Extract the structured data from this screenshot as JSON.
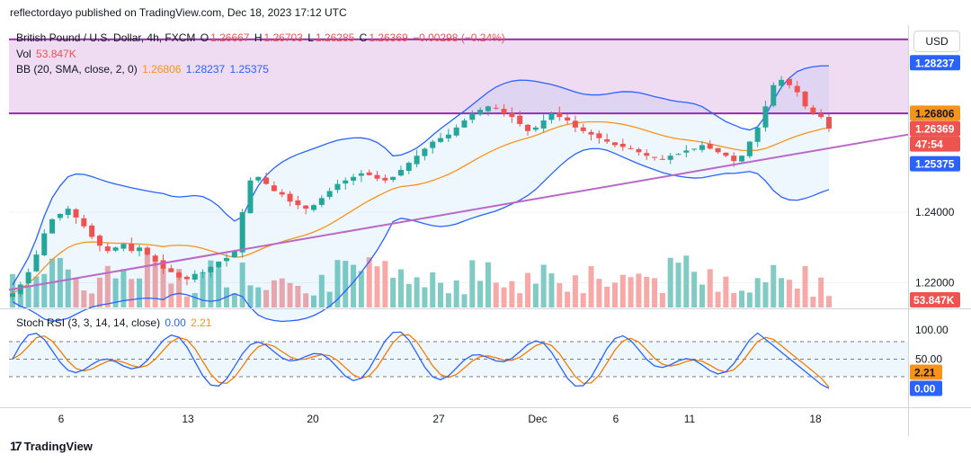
{
  "header": {
    "text": "reflectordayo published on TradingView.com, Dec 18, 2023 17:12 UTC"
  },
  "currency_button": "USD",
  "legend": {
    "symbol": "British Pound / U.S. Dollar, 4h, FXCM",
    "o_label": "O",
    "o_value": "1.26667",
    "h_label": "H",
    "h_value": "1.26703",
    "l_label": "L",
    "l_value": "1.26285",
    "c_label": "C",
    "c_value": "1.26369",
    "change": "−0.00298 (−0.24%)",
    "vol_label": "Vol",
    "vol_value": "53.847K",
    "bb_label": "BB (20, SMA, close, 2, 0)",
    "bb_basis": "1.26806",
    "bb_upper": "1.28237",
    "bb_lower": "1.25375",
    "stoch_label": "Stoch RSI (3, 3, 14, 14, close)",
    "stoch_k": "0.00",
    "stoch_d": "2.21"
  },
  "price_axis": {
    "ticks": [
      "1.24000",
      "1.22000"
    ],
    "tags": [
      {
        "text": "1.28237",
        "bg": "#2962ff",
        "fg": "#ffffff",
        "value": 1.28237
      },
      {
        "text": "1.26806",
        "bg": "#f7931a",
        "fg": "#131722",
        "value": 1.26806
      },
      {
        "text": "1.26369",
        "bg": "#ef5350",
        "fg": "#ffffff",
        "value": 1.26369
      },
      {
        "text": "47:54",
        "bg": "#ef5350",
        "fg": "#ffffff",
        "value": null
      },
      {
        "text": "1.25375",
        "bg": "#2962ff",
        "fg": "#ffffff",
        "value": 1.25375
      }
    ],
    "volume_tag": {
      "text": "53.847K",
      "bg": "#ef5350",
      "fg": "#ffffff"
    }
  },
  "stoch_axis": {
    "ticks": [
      "100.00",
      "50.00"
    ],
    "tags": [
      {
        "text": "2.21",
        "bg": "#f7931a",
        "fg": "#131722",
        "value": 2.21
      },
      {
        "text": "0.00",
        "bg": "#2962ff",
        "fg": "#ffffff",
        "value": 0.0
      }
    ]
  },
  "time_axis": {
    "ticks": [
      "6",
      "13",
      "20",
      "27",
      "Dec",
      "6",
      "11",
      "18"
    ]
  },
  "footer": {
    "logo": "17",
    "text": "TradingView"
  },
  "chart_data": {
    "type": "candlestick",
    "symbol": "GBPUSD",
    "interval": "4h",
    "price_range": [
      1.213,
      1.2925
    ],
    "resistance_zone": [
      1.268,
      1.289
    ],
    "trendline": {
      "start_price": 1.218,
      "end_price": 1.262
    },
    "close_series": [
      1.217,
      1.2195,
      1.223,
      1.228,
      1.234,
      1.238,
      1.2395,
      1.241,
      1.2385,
      1.236,
      1.233,
      1.2305,
      1.229,
      1.23,
      1.231,
      1.229,
      1.23,
      1.228,
      1.226,
      1.224,
      1.223,
      1.2215,
      1.221,
      1.2225,
      1.223,
      1.2245,
      1.226,
      1.227,
      1.229,
      1.24,
      1.249,
      1.25,
      1.248,
      1.246,
      1.245,
      1.243,
      1.242,
      1.241,
      1.242,
      1.244,
      1.246,
      1.248,
      1.249,
      1.25,
      1.251,
      1.2505,
      1.2495,
      1.249,
      1.25,
      1.252,
      1.254,
      1.256,
      1.258,
      1.26,
      1.261,
      1.262,
      1.264,
      1.266,
      1.268,
      1.269,
      1.27,
      1.2695,
      1.268,
      1.267,
      1.265,
      1.263,
      1.264,
      1.266,
      1.268,
      1.267,
      1.266,
      1.264,
      1.263,
      1.262,
      1.261,
      1.26,
      1.259,
      1.2585,
      1.258,
      1.257,
      1.256,
      1.2555,
      1.255,
      1.256,
      1.2565,
      1.2575,
      1.258,
      1.259,
      1.258,
      1.257,
      1.256,
      1.2545,
      1.256,
      1.26,
      1.264,
      1.27,
      1.276,
      1.2775,
      1.276,
      1.274,
      1.27,
      1.268,
      1.267,
      1.2637
    ],
    "stoch_rsi": {
      "k": 0.0,
      "d": 2.21,
      "upper_band": 80,
      "lower_band": 20,
      "range": [
        0,
        100
      ]
    },
    "volume_last": "53.847K"
  }
}
